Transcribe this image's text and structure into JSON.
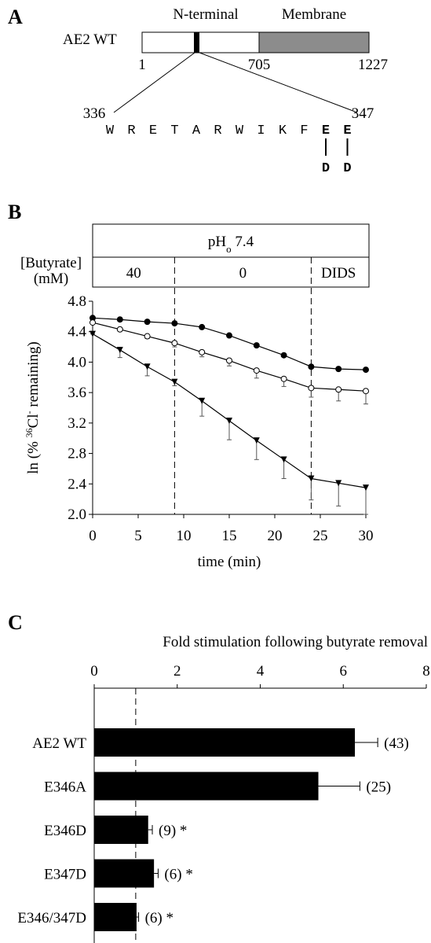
{
  "panel_labels": {
    "a": "A",
    "b": "B",
    "c": "C"
  },
  "diagram": {
    "protein": "AE2 WT",
    "domains": [
      "N-terminal",
      "Membrane"
    ],
    "positions": [
      "1",
      "705",
      "1227"
    ],
    "segment_start": "336",
    "segment_end": "347",
    "sequence": [
      "W",
      "R",
      "E",
      "T",
      "A",
      "R",
      "W",
      "I",
      "K",
      "F",
      "E",
      "E"
    ],
    "mutations": [
      "D",
      "D"
    ]
  },
  "chart_data": [
    {
      "type": "line",
      "condition": {
        "ph_parts": [
          "pH",
          "o",
          " 7.4"
        ],
        "butyrate_label": "[Butyrate]",
        "unit_label": "(mM)",
        "phases": [
          "40",
          "0",
          "DIDS"
        ],
        "phase_bounds": [
          9,
          24
        ]
      },
      "x": [
        0,
        3,
        6,
        9,
        12,
        15,
        18,
        21,
        24,
        27,
        30
      ],
      "series": [
        {
          "marker": "filled-circle",
          "color": "#000000",
          "values": [
            4.58,
            4.56,
            4.53,
            4.51,
            4.46,
            4.35,
            4.22,
            4.09,
            3.94,
            3.91,
            3.9
          ]
        },
        {
          "marker": "open-circle",
          "color": "#000000",
          "values": [
            4.52,
            4.43,
            4.34,
            4.25,
            4.13,
            4.02,
            3.89,
            3.78,
            3.66,
            3.64,
            3.62
          ],
          "errors": [
            0,
            0,
            0.03,
            0.05,
            0.06,
            0.07,
            0.1,
            0.1,
            0.12,
            0.15,
            0.17
          ]
        },
        {
          "marker": "triangle",
          "color": "#000000",
          "values": [
            4.37,
            4.16,
            3.94,
            3.74,
            3.49,
            3.23,
            2.97,
            2.72,
            2.47,
            2.41,
            2.35
          ],
          "errors": [
            0,
            0.1,
            0.12,
            0.05,
            0.2,
            0.25,
            0.25,
            0.25,
            0.28,
            0.3,
            0.35
          ]
        }
      ],
      "xlim": [
        0,
        30
      ],
      "xticks": [
        0,
        5,
        10,
        15,
        20,
        25,
        30
      ],
      "ylim": [
        2.0,
        4.8
      ],
      "yticks": [
        {
          "value": 2,
          "label": "2.0"
        },
        2.4,
        2.8,
        3.2,
        3.6,
        {
          "value": 4,
          "label": "4.0"
        },
        4.4,
        4.8
      ],
      "x_label": "time (min)",
      "y_label_parts": [
        "ln (% ",
        "36",
        "Cl",
        "-",
        " remaining)"
      ]
    },
    {
      "type": "hbar",
      "title": "Fold stimulation following butyrate removal",
      "categories": [
        "AE2 WT",
        "E346A",
        "E346D",
        "E347D",
        "E346/347D"
      ],
      "values": [
        6.28,
        5.4,
        1.3,
        1.44,
        1.02
      ],
      "errors": [
        0.55,
        1.0,
        0.1,
        0.1,
        0.05
      ],
      "annotations": [
        "(43)",
        "(25)",
        "(9) *",
        "(6)  *",
        "(6) *"
      ],
      "color": "#000000",
      "reference_line": 1,
      "xlim": [
        0,
        8
      ],
      "xticks": [
        0,
        2,
        4,
        6,
        8
      ]
    }
  ]
}
